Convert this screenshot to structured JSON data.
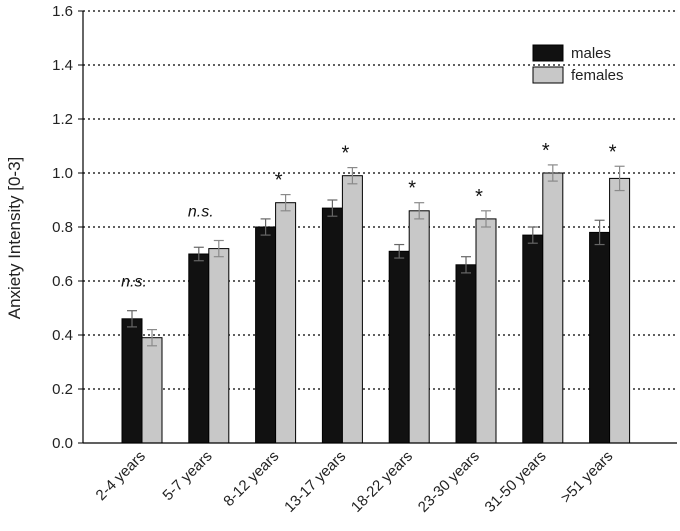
{
  "chart_data": {
    "type": "bar",
    "title": "",
    "xlabel": "",
    "ylabel": "Anxiety Intensity [0-3]",
    "ylim": [
      0,
      1.6
    ],
    "yticks": [
      "0.0",
      "0.2",
      "0.4",
      "0.6",
      "0.8",
      "1.0",
      "1.2",
      "1.4",
      "1.6"
    ],
    "grid": "horizontal dotted",
    "legend_position": "top-right",
    "categories": [
      "2-4 years",
      "5-7 years",
      "8-12 years",
      "13-17 years",
      "18-22 years",
      "23-30 years",
      "31-50 years",
      ">51 years"
    ],
    "series": [
      {
        "name": "males",
        "color": "#111111",
        "values": [
          0.46,
          0.7,
          0.8,
          0.87,
          0.71,
          0.66,
          0.77,
          0.78
        ],
        "errors": [
          0.03,
          0.025,
          0.03,
          0.03,
          0.025,
          0.03,
          0.03,
          0.045
        ]
      },
      {
        "name": "females",
        "color": "#c8c8c8",
        "values": [
          0.39,
          0.72,
          0.89,
          0.99,
          0.86,
          0.83,
          1.0,
          0.98
        ],
        "errors": [
          0.03,
          0.03,
          0.03,
          0.03,
          0.03,
          0.03,
          0.03,
          0.045
        ]
      }
    ],
    "annotations": [
      "n.s.",
      "n.s.",
      "*",
      "*",
      "*",
      "*",
      "*",
      "*"
    ]
  }
}
